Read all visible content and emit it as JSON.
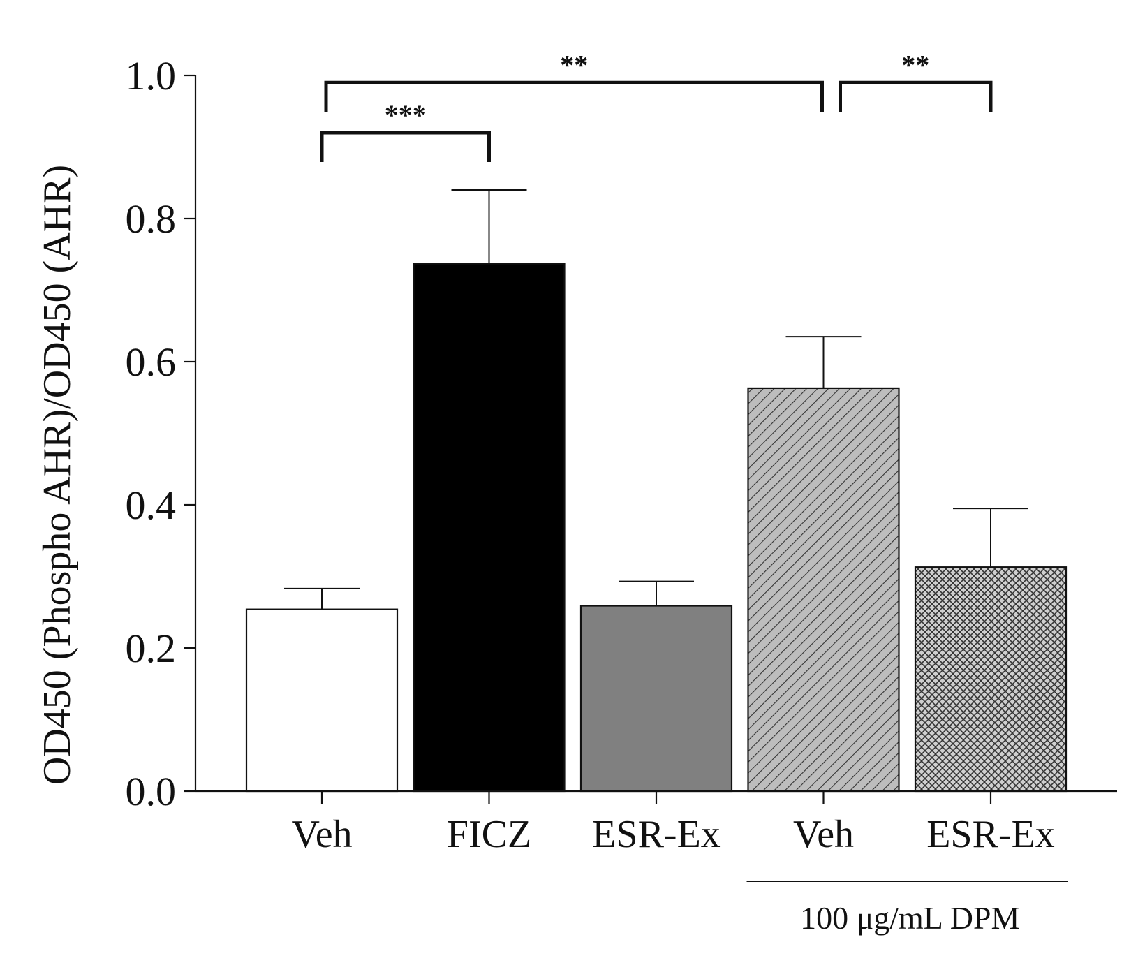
{
  "chart_data": {
    "type": "bar",
    "title": "",
    "xlabel": "",
    "ylabel": "OD450 (Phospho AHR)/OD450 (AHR)",
    "ylim": [
      0,
      1.0
    ],
    "yticks": [
      "0.0",
      "0.2",
      "0.4",
      "0.6",
      "0.8",
      "1.0"
    ],
    "grid": false,
    "categories": [
      "Veh",
      "FICZ",
      "ESR-Ex",
      "Veh",
      "ESR-Ex"
    ],
    "values": [
      0.254,
      0.737,
      0.259,
      0.563,
      0.313
    ],
    "errors": [
      0.029,
      0.103,
      0.034,
      0.072,
      0.082
    ],
    "fills": [
      "white",
      "black",
      "gray",
      "diagonal-hatch",
      "cross-hatch"
    ],
    "colors": {
      "white": "#ffffff",
      "black": "#000000",
      "gray": "#808080",
      "hatch_bg": "#bdbdbd",
      "line": "#111111"
    },
    "group_label": {
      "text": "100 μg/mL DPM",
      "from_category": 3,
      "to_category": 4
    },
    "significance": [
      {
        "from": 0,
        "to": 1,
        "label": "***",
        "level": 0.92
      },
      {
        "from": 0,
        "to": 3,
        "label": "**",
        "level": 0.99
      },
      {
        "from": 3,
        "to": 4,
        "label": "**",
        "level": 0.99
      }
    ]
  }
}
